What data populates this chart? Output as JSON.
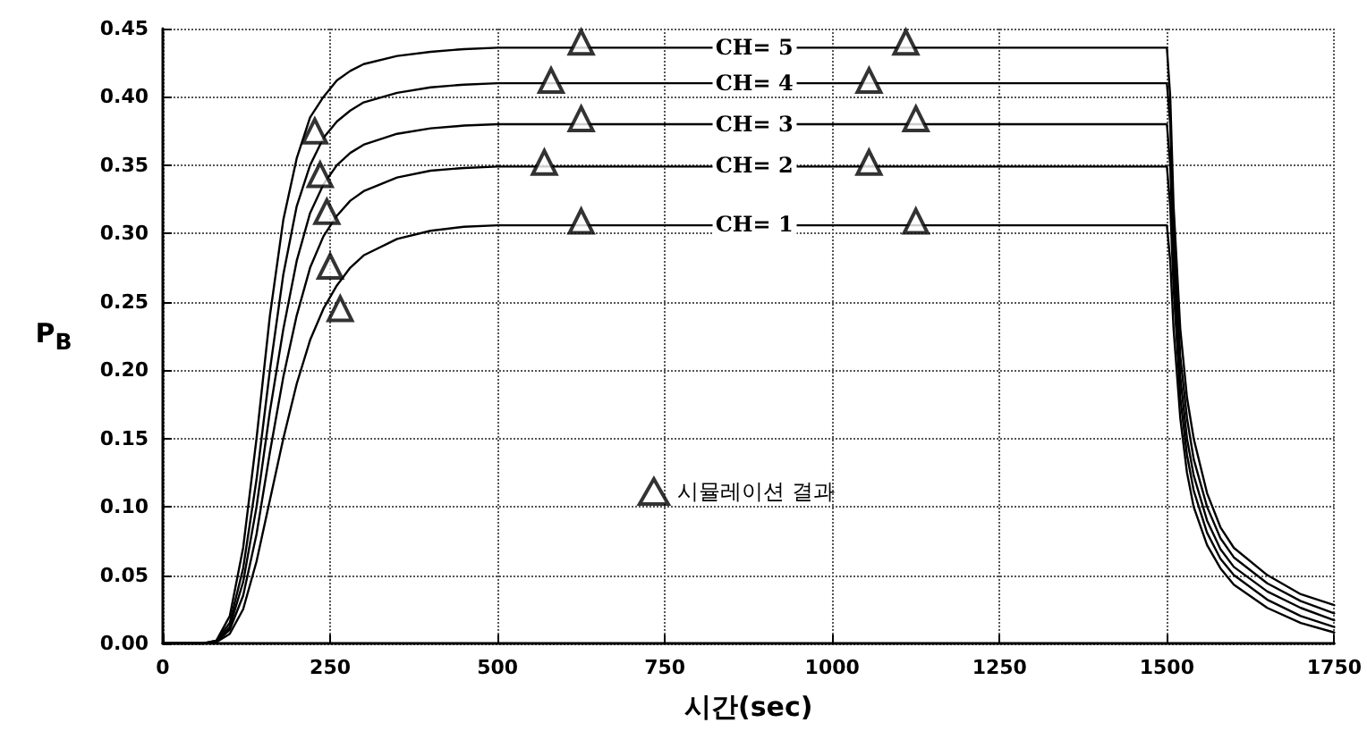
{
  "chart_data": {
    "type": "line",
    "xlabel": "시간(sec)",
    "ylabel": "P$_{B}$",
    "x": [
      0,
      60,
      80,
      100,
      120,
      140,
      160,
      180,
      200,
      220,
      240,
      260,
      280,
      300,
      350,
      400,
      450,
      500,
      600,
      800,
      1000,
      1200,
      1400,
      1495,
      1500,
      1505,
      1510,
      1520,
      1530,
      1540,
      1560,
      1580,
      1600,
      1650,
      1700,
      1750
    ],
    "series": [
      {
        "color": "#000000",
        "values": [
          0,
          0,
          0.002,
          0.02,
          0.07,
          0.15,
          0.24,
          0.31,
          0.355,
          0.385,
          0.4,
          0.412,
          0.419,
          0.424,
          0.43,
          0.433,
          0.435,
          0.436,
          0.436,
          0.436,
          0.436,
          0.436,
          0.436,
          0.436,
          0.436,
          0.4,
          0.32,
          0.23,
          0.18,
          0.15,
          0.11,
          0.085,
          0.07,
          0.05,
          0.036,
          0.028
        ]
      },
      {
        "color": "#000000",
        "values": [
          0,
          0,
          0.002,
          0.015,
          0.055,
          0.12,
          0.2,
          0.27,
          0.32,
          0.35,
          0.37,
          0.382,
          0.39,
          0.396,
          0.403,
          0.407,
          0.409,
          0.41,
          0.41,
          0.41,
          0.41,
          0.41,
          0.41,
          0.41,
          0.41,
          0.38,
          0.3,
          0.21,
          0.165,
          0.135,
          0.1,
          0.077,
          0.063,
          0.044,
          0.031,
          0.022
        ]
      },
      {
        "color": "#000000",
        "values": [
          0,
          0,
          0.001,
          0.012,
          0.045,
          0.1,
          0.17,
          0.23,
          0.28,
          0.315,
          0.336,
          0.35,
          0.359,
          0.365,
          0.373,
          0.377,
          0.379,
          0.38,
          0.38,
          0.38,
          0.38,
          0.38,
          0.38,
          0.38,
          0.38,
          0.35,
          0.28,
          0.195,
          0.15,
          0.123,
          0.09,
          0.069,
          0.056,
          0.038,
          0.026,
          0.017
        ]
      },
      {
        "color": "#000000",
        "values": [
          0,
          0,
          0.001,
          0.01,
          0.035,
          0.08,
          0.14,
          0.195,
          0.24,
          0.275,
          0.298,
          0.313,
          0.324,
          0.331,
          0.341,
          0.346,
          0.348,
          0.349,
          0.349,
          0.349,
          0.349,
          0.349,
          0.349,
          0.349,
          0.349,
          0.32,
          0.26,
          0.18,
          0.138,
          0.112,
          0.081,
          0.062,
          0.05,
          0.032,
          0.02,
          0.012
        ]
      },
      {
        "color": "#000000",
        "values": [
          0,
          0,
          0.001,
          0.007,
          0.025,
          0.06,
          0.105,
          0.15,
          0.19,
          0.222,
          0.245,
          0.262,
          0.275,
          0.284,
          0.296,
          0.302,
          0.305,
          0.306,
          0.306,
          0.306,
          0.306,
          0.306,
          0.306,
          0.306,
          0.306,
          0.28,
          0.23,
          0.165,
          0.125,
          0.1,
          0.072,
          0.055,
          0.043,
          0.026,
          0.015,
          0.008
        ]
      },
      {
        "type": "scatter",
        "name": "시뮬레이션 결과",
        "color": "#000000",
        "marker": "triangle",
        "x": [
          227,
          235,
          245,
          250,
          265,
          625,
          580,
          625,
          570,
          625,
          1110,
          1055,
          1125,
          1055,
          1125
        ],
        "values": [
          0.375,
          0.343,
          0.316,
          0.276,
          0.245,
          0.44,
          0.412,
          0.384,
          0.352,
          0.309,
          0.44,
          0.412,
          0.384,
          0.352,
          0.309
        ]
      }
    ],
    "annotations": [
      {
        "text": "CH= 5",
        "y": 0.436
      },
      {
        "text": "CH= 4",
        "y": 0.41
      },
      {
        "text": "CH= 3",
        "y": 0.38
      },
      {
        "text": "CH= 2",
        "y": 0.349
      },
      {
        "text": "CH= 1",
        "y": 0.306
      }
    ],
    "xlim": [
      0,
      1750
    ],
    "xticks": [
      0,
      250,
      500,
      750,
      1000,
      1250,
      1500,
      1750
    ],
    "ylim": [
      0,
      0.45
    ],
    "yticks": [
      {
        "value": 0,
        "label": "0.00"
      },
      {
        "value": 0.05,
        "label": "0.05"
      },
      {
        "value": 0.1,
        "label": "0.10"
      },
      {
        "value": 0.15,
        "label": "0.15"
      },
      {
        "value": 0.2,
        "label": "0.20"
      },
      {
        "value": 0.25,
        "label": "0.25"
      },
      {
        "value": 0.3,
        "label": "0.30"
      },
      {
        "value": 0.35,
        "label": "0.35"
      },
      {
        "value": 0.4,
        "label": "0.40"
      },
      {
        "value": 0.45,
        "label": "0.45"
      }
    ],
    "grid": true,
    "legend": "bottom",
    "marker": "none",
    "line_style": "solid"
  }
}
